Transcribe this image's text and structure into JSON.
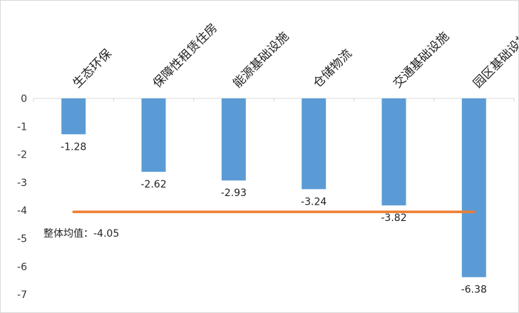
{
  "chart_data": {
    "type": "bar",
    "categories": [
      "生态环保",
      "保障性租赁住房",
      "能源基础设施",
      "仓储物流",
      "交通基础设施",
      "园区基础设施"
    ],
    "values": [
      -1.28,
      -2.62,
      -2.93,
      -3.24,
      -3.82,
      -6.38
    ],
    "data_labels": [
      "-1.28",
      "-2.62",
      "-2.93",
      "-3.24",
      "-3.82",
      "-6.38"
    ],
    "ylim": [
      -7,
      0
    ],
    "yticks": [
      0,
      -1,
      -2,
      -3,
      -4,
      -5,
      -6,
      -7
    ],
    "ytick_labels": [
      "0",
      "-1",
      "-2",
      "-3",
      "-4",
      "-5",
      "-6",
      "-7"
    ],
    "xlabel": "",
    "ylabel": "",
    "grid": false,
    "category_label_position": "top, rotated",
    "average_line": {
      "value": -4.05,
      "label": "整体均值：-4.05",
      "color": "#ed7d31"
    },
    "bar_color": "#5b9bd5"
  }
}
